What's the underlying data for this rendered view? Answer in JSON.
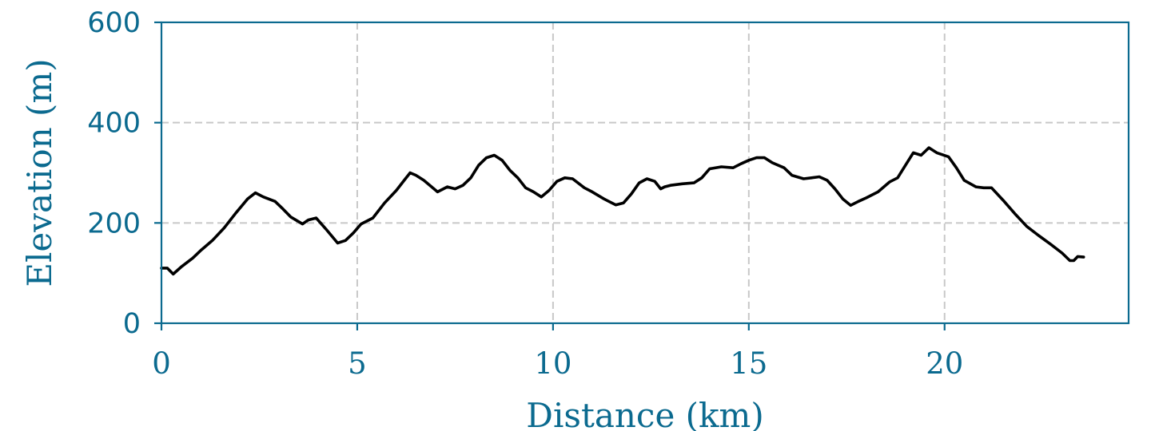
{
  "chart_data": {
    "type": "line",
    "title": "",
    "xlabel": "Distance (km)",
    "ylabel": "Elevation (m)",
    "xlim": [
      0,
      24.7
    ],
    "ylim": [
      0,
      600
    ],
    "xticks": [
      0,
      5,
      10,
      15,
      20
    ],
    "yticks": [
      0,
      200,
      400,
      600
    ],
    "xtick_labels": [
      "0",
      "5",
      "10",
      "15",
      "20"
    ],
    "ytick_labels": [
      "0",
      "200",
      "400",
      "600"
    ],
    "grid": true,
    "legend": "none",
    "colors": {
      "axis": "#0b6a8f",
      "line": "#000000",
      "grid": "#c8c8c8"
    },
    "series": [
      {
        "x": [
          0,
          0.15,
          0.3,
          0.5,
          0.8,
          1.0,
          1.3,
          1.6,
          1.9,
          2.2,
          2.4,
          2.6,
          2.9,
          3.1,
          3.3,
          3.6,
          3.75,
          3.95,
          4.2,
          4.5,
          4.7,
          4.9,
          5.1,
          5.4,
          5.7,
          6.0,
          6.2,
          6.35,
          6.5,
          6.7,
          6.9,
          7.05,
          7.3,
          7.5,
          7.7,
          7.9,
          8.1,
          8.3,
          8.5,
          8.7,
          8.9,
          9.1,
          9.3,
          9.5,
          9.7,
          9.9,
          10.1,
          10.3,
          10.5,
          10.8,
          11.0,
          11.3,
          11.6,
          11.8,
          12.0,
          12.2,
          12.4,
          12.6,
          12.75,
          12.85,
          13.0,
          13.3,
          13.6,
          13.8,
          14.0,
          14.3,
          14.6,
          14.8,
          15.0,
          15.2,
          15.4,
          15.6,
          15.9,
          16.1,
          16.4,
          16.6,
          16.8,
          17.0,
          17.2,
          17.4,
          17.6,
          17.8,
          18.0,
          18.3,
          18.6,
          18.8,
          19.0,
          19.2,
          19.4,
          19.6,
          19.8,
          20.1,
          20.3,
          20.5,
          20.8,
          21.0,
          21.2,
          21.5,
          21.8,
          22.1,
          22.4,
          22.7,
          23.0,
          23.2,
          23.3,
          23.4,
          23.55
        ],
        "y": [
          110,
          110,
          98,
          112,
          130,
          145,
          165,
          190,
          220,
          248,
          260,
          252,
          243,
          228,
          212,
          198,
          206,
          210,
          188,
          160,
          165,
          180,
          198,
          210,
          240,
          265,
          285,
          300,
          295,
          285,
          272,
          262,
          272,
          268,
          275,
          290,
          315,
          330,
          335,
          325,
          305,
          290,
          270,
          262,
          252,
          265,
          283,
          290,
          288,
          270,
          262,
          248,
          236,
          240,
          258,
          280,
          288,
          283,
          268,
          272,
          275,
          278,
          280,
          290,
          308,
          312,
          310,
          318,
          325,
          330,
          330,
          320,
          310,
          295,
          288,
          290,
          292,
          285,
          268,
          248,
          235,
          243,
          250,
          262,
          282,
          290,
          315,
          340,
          335,
          350,
          340,
          332,
          310,
          285,
          272,
          270,
          270,
          245,
          218,
          193,
          175,
          158,
          140,
          125,
          125,
          133,
          132
        ]
      }
    ]
  }
}
